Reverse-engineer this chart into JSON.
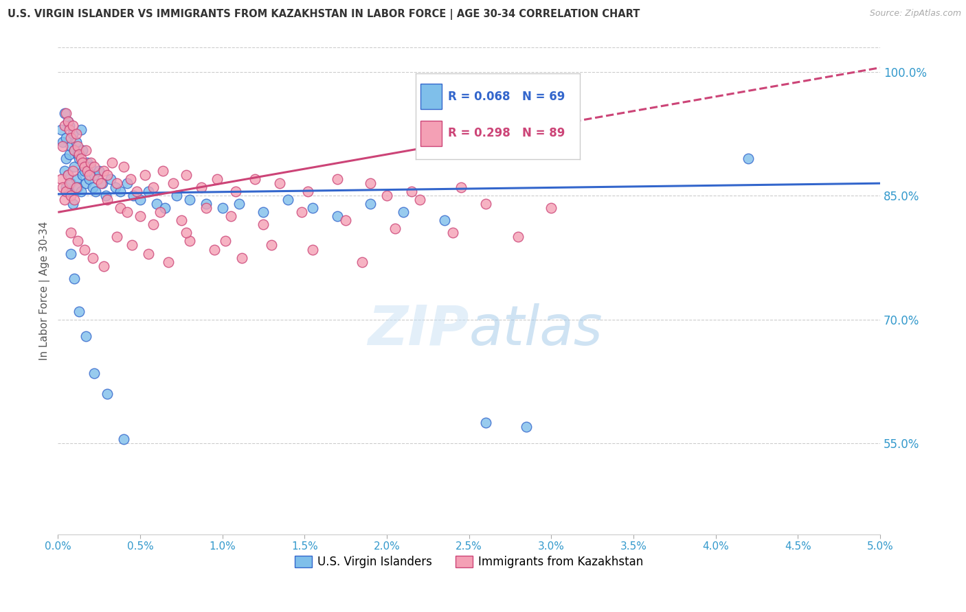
{
  "title": "U.S. VIRGIN ISLANDER VS IMMIGRANTS FROM KAZAKHSTAN IN LABOR FORCE | AGE 30-34 CORRELATION CHART",
  "source": "Source: ZipAtlas.com",
  "ylabel": "In Labor Force | Age 30-34",
  "xmin": 0.0,
  "xmax": 5.0,
  "ymin": 44.0,
  "ymax": 103.0,
  "yticks": [
    55.0,
    70.0,
    85.0,
    100.0
  ],
  "ytick_labels": [
    "55.0%",
    "70.0%",
    "85.0%",
    "100.0%"
  ],
  "blue_label": "U.S. Virgin Islanders",
  "pink_label": "Immigrants from Kazakhstan",
  "blue_R": "R = 0.068",
  "blue_N": "N = 69",
  "pink_R": "R = 0.298",
  "pink_N": "N = 89",
  "blue_color": "#7fbfea",
  "pink_color": "#f4a0b5",
  "blue_line_color": "#3366cc",
  "pink_line_color": "#cc4477",
  "axis_color": "#3399cc",
  "blue_trend_x0": 0.0,
  "blue_trend_y0": 85.2,
  "blue_trend_x1": 5.0,
  "blue_trend_y1": 86.5,
  "pink_trend_x0": 0.0,
  "pink_trend_y0": 83.0,
  "pink_trend_x1": 5.0,
  "pink_trend_y1": 100.5,
  "blue_points_x": [
    0.02,
    0.03,
    0.04,
    0.04,
    0.05,
    0.05,
    0.05,
    0.06,
    0.06,
    0.07,
    0.07,
    0.07,
    0.08,
    0.08,
    0.09,
    0.09,
    0.1,
    0.1,
    0.11,
    0.11,
    0.12,
    0.12,
    0.13,
    0.14,
    0.14,
    0.15,
    0.15,
    0.16,
    0.17,
    0.18,
    0.19,
    0.2,
    0.21,
    0.22,
    0.23,
    0.25,
    0.27,
    0.29,
    0.32,
    0.35,
    0.38,
    0.42,
    0.46,
    0.5,
    0.55,
    0.6,
    0.65,
    0.72,
    0.8,
    0.9,
    1.0,
    1.1,
    1.25,
    1.4,
    1.55,
    1.7,
    1.9,
    2.1,
    2.35,
    2.6,
    2.85,
    0.08,
    0.1,
    0.13,
    0.17,
    0.22,
    0.3,
    0.4,
    4.2
  ],
  "blue_points_y": [
    93.0,
    91.5,
    95.0,
    88.0,
    92.0,
    89.5,
    86.0,
    94.0,
    87.5,
    93.5,
    90.0,
    85.5,
    91.0,
    86.5,
    92.5,
    84.0,
    90.5,
    88.5,
    91.5,
    87.0,
    90.0,
    86.0,
    89.5,
    93.0,
    85.5,
    90.5,
    87.5,
    88.0,
    86.5,
    89.0,
    87.0,
    88.5,
    86.0,
    87.5,
    85.5,
    88.0,
    86.5,
    85.0,
    87.0,
    86.0,
    85.5,
    86.5,
    85.0,
    84.5,
    85.5,
    84.0,
    83.5,
    85.0,
    84.5,
    84.0,
    83.5,
    84.0,
    83.0,
    84.5,
    83.5,
    82.5,
    84.0,
    83.0,
    82.0,
    57.5,
    57.0,
    78.0,
    75.0,
    71.0,
    68.0,
    63.5,
    61.0,
    55.5,
    89.5
  ],
  "pink_points_x": [
    0.02,
    0.03,
    0.03,
    0.04,
    0.04,
    0.05,
    0.05,
    0.06,
    0.06,
    0.07,
    0.07,
    0.08,
    0.08,
    0.09,
    0.09,
    0.1,
    0.1,
    0.11,
    0.11,
    0.12,
    0.13,
    0.14,
    0.15,
    0.16,
    0.17,
    0.18,
    0.19,
    0.2,
    0.22,
    0.24,
    0.26,
    0.28,
    0.3,
    0.33,
    0.36,
    0.4,
    0.44,
    0.48,
    0.53,
    0.58,
    0.64,
    0.7,
    0.78,
    0.87,
    0.97,
    1.08,
    1.2,
    1.35,
    1.52,
    1.7,
    1.9,
    2.15,
    2.45,
    0.08,
    0.12,
    0.16,
    0.21,
    0.28,
    0.36,
    0.45,
    0.55,
    0.67,
    0.8,
    0.95,
    1.12,
    1.3,
    1.55,
    1.85,
    2.2,
    2.6,
    3.0,
    0.38,
    0.5,
    0.62,
    0.75,
    0.9,
    1.05,
    1.25,
    1.48,
    1.75,
    2.05,
    2.4,
    2.8,
    0.3,
    0.42,
    0.58,
    0.78,
    1.02,
    2.0
  ],
  "pink_points_y": [
    87.0,
    91.0,
    86.0,
    93.5,
    84.5,
    95.0,
    85.5,
    94.0,
    87.5,
    93.0,
    86.5,
    92.0,
    85.0,
    93.5,
    88.0,
    90.5,
    84.5,
    92.5,
    86.0,
    91.0,
    90.0,
    89.5,
    89.0,
    88.5,
    90.5,
    88.0,
    87.5,
    89.0,
    88.5,
    87.0,
    86.5,
    88.0,
    87.5,
    89.0,
    86.5,
    88.5,
    87.0,
    85.5,
    87.5,
    86.0,
    88.0,
    86.5,
    87.5,
    86.0,
    87.0,
    85.5,
    87.0,
    86.5,
    85.5,
    87.0,
    86.5,
    85.5,
    86.0,
    80.5,
    79.5,
    78.5,
    77.5,
    76.5,
    80.0,
    79.0,
    78.0,
    77.0,
    79.5,
    78.5,
    77.5,
    79.0,
    78.5,
    77.0,
    84.5,
    84.0,
    83.5,
    83.5,
    82.5,
    83.0,
    82.0,
    83.5,
    82.5,
    81.5,
    83.0,
    82.0,
    81.0,
    80.5,
    80.0,
    84.5,
    83.0,
    81.5,
    80.5,
    79.5,
    85.0
  ]
}
